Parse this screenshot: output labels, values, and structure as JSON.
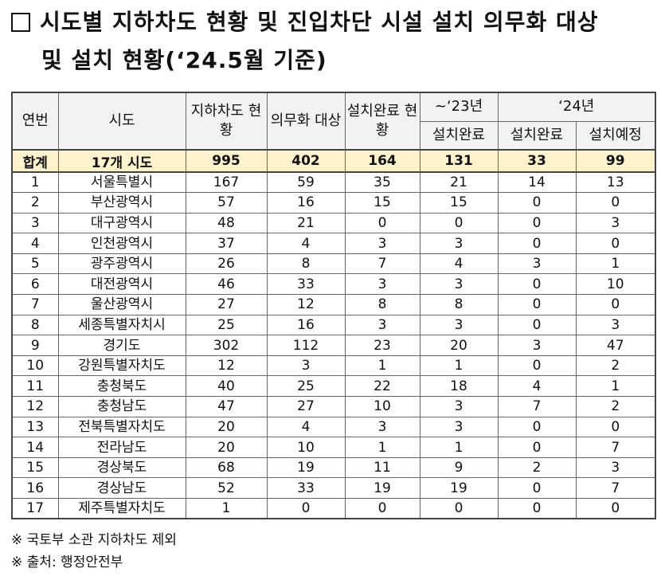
{
  "title": {
    "line1": "시도별 지하차도 현황 및 진입차단 시설 설치 의무화 대상",
    "line2": "및 설치 현황(‘24.5월 기준)"
  },
  "table": {
    "headers": {
      "no": "연번",
      "region": "시도",
      "underpass": "지하차도 현황",
      "mandatory": "의무화 대상",
      "installed": "설치완료 현황",
      "y23": "~‘23년",
      "y24": "‘24년",
      "y23_done": "설치완료",
      "y24_done": "설치완료",
      "y24_plan": "설치예정"
    },
    "total": [
      "합계",
      "17개 시도",
      "995",
      "402",
      "164",
      "131",
      "33",
      "99"
    ],
    "rows": [
      [
        "1",
        "서울특별시",
        "167",
        "59",
        "35",
        "21",
        "14",
        "13"
      ],
      [
        "2",
        "부산광역시",
        "57",
        "16",
        "15",
        "15",
        "0",
        "0"
      ],
      [
        "3",
        "대구광역시",
        "48",
        "21",
        "0",
        "0",
        "0",
        "3"
      ],
      [
        "4",
        "인천광역시",
        "37",
        "4",
        "3",
        "3",
        "0",
        "0"
      ],
      [
        "5",
        "광주광역시",
        "26",
        "8",
        "7",
        "4",
        "3",
        "1"
      ],
      [
        "6",
        "대전광역시",
        "46",
        "33",
        "3",
        "3",
        "0",
        "10"
      ],
      [
        "7",
        "울산광역시",
        "27",
        "12",
        "8",
        "8",
        "0",
        "0"
      ],
      [
        "8",
        "세종특별자치시",
        "25",
        "16",
        "3",
        "3",
        "0",
        "3"
      ],
      [
        "9",
        "경기도",
        "302",
        "112",
        "23",
        "20",
        "3",
        "47"
      ],
      [
        "10",
        "강원특별자치도",
        "12",
        "3",
        "1",
        "1",
        "0",
        "2"
      ],
      [
        "11",
        "충청북도",
        "40",
        "25",
        "22",
        "18",
        "4",
        "1"
      ],
      [
        "12",
        "충청남도",
        "47",
        "27",
        "10",
        "3",
        "7",
        "2"
      ],
      [
        "13",
        "전북특별자치도",
        "20",
        "4",
        "3",
        "3",
        "0",
        "0"
      ],
      [
        "14",
        "전라남도",
        "20",
        "10",
        "1",
        "1",
        "0",
        "7"
      ],
      [
        "15",
        "경상북도",
        "68",
        "19",
        "11",
        "9",
        "2",
        "3"
      ],
      [
        "16",
        "경상남도",
        "52",
        "33",
        "19",
        "19",
        "0",
        "7"
      ],
      [
        "17",
        "제주특별자치도",
        "1",
        "0",
        "0",
        "0",
        "0",
        "0"
      ]
    ]
  },
  "notes": {
    "note1": "※ 국토부 소관 지하차도 제외",
    "note2": "※ 출처: 행정안전부"
  }
}
